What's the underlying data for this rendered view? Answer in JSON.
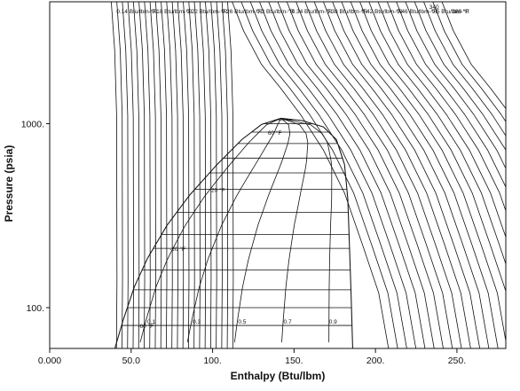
{
  "chart_data": {
    "type": "line",
    "title": "",
    "xlabel": "Enthalpy (Btu/lbm)",
    "ylabel": "Pressure (psia)",
    "xlim": [
      0,
      280
    ],
    "ylim": [
      60,
      4600
    ],
    "y_scale": "log",
    "grid": false,
    "x_ticks": [
      0,
      50,
      100,
      150,
      200,
      250
    ],
    "x_tick_labels": [
      "0.000",
      "50.0",
      "100.",
      "150.",
      "200.",
      "250."
    ],
    "y_ticks": [
      100,
      1000
    ],
    "y_tick_labels": [
      "100.",
      "1000."
    ],
    "saturation_dome": {
      "critical_point": {
        "h": 142,
        "p": 1070
      },
      "liquid_line": [
        {
          "h": 40,
          "p": 60
        },
        {
          "h": 45,
          "p": 85
        },
        {
          "h": 52,
          "p": 130
        },
        {
          "h": 60,
          "p": 185
        },
        {
          "h": 72,
          "p": 280
        },
        {
          "h": 86,
          "p": 410
        },
        {
          "h": 102,
          "p": 590
        },
        {
          "h": 118,
          "p": 820
        },
        {
          "h": 130,
          "p": 990
        },
        {
          "h": 142,
          "p": 1070
        }
      ],
      "vapor_line": [
        {
          "h": 142,
          "p": 1070
        },
        {
          "h": 155,
          "p": 1040
        },
        {
          "h": 168,
          "p": 960
        },
        {
          "h": 176,
          "p": 820
        },
        {
          "h": 181,
          "p": 600
        },
        {
          "h": 183,
          "p": 390
        },
        {
          "h": 184,
          "p": 220
        },
        {
          "h": 185,
          "p": 120
        },
        {
          "h": 186,
          "p": 60
        }
      ]
    },
    "quality_lines": [
      {
        "label": "0.1",
        "x": 0.1
      },
      {
        "label": "0.3",
        "x": 0.3
      },
      {
        "label": "0.5",
        "x": 0.5
      },
      {
        "label": "0.7",
        "x": 0.7
      },
      {
        "label": "0.9",
        "x": 0.9
      }
    ],
    "isotherms": [
      {
        "label": "60 °F",
        "p": 900
      },
      {
        "label": "20 °F",
        "p": 440
      },
      {
        "label": "-20 °F",
        "p": 210
      },
      {
        "label": "-60 °F",
        "p": 80
      }
    ],
    "isentropes": [
      {
        "label": "0.14 Btu/lbm-°R",
        "s": 0.14
      },
      {
        "label": "0.18 Btu/lbm-°R",
        "s": 0.18
      },
      {
        "label": "0.22 Btu/lbm-°R",
        "s": 0.22
      },
      {
        "label": "0.26 Btu/lbm-°R",
        "s": 0.26
      },
      {
        "label": "0.3 Btu/lbm-°R",
        "s": 0.3
      },
      {
        "label": "0.34 Btu/lbm-°R",
        "s": 0.34
      },
      {
        "label": "0.38 Btu/lbm-°R",
        "s": 0.38
      },
      {
        "label": "0.42 Btu/lbm-°R",
        "s": 0.42
      },
      {
        "label": "0.46 Btu/lbm-°R",
        "s": 0.46
      },
      {
        "label": "0.5 Btu/lbm-°R",
        "s": 0.5
      }
    ],
    "top_temperature_labels": [
      "340",
      "380 °F"
    ]
  }
}
